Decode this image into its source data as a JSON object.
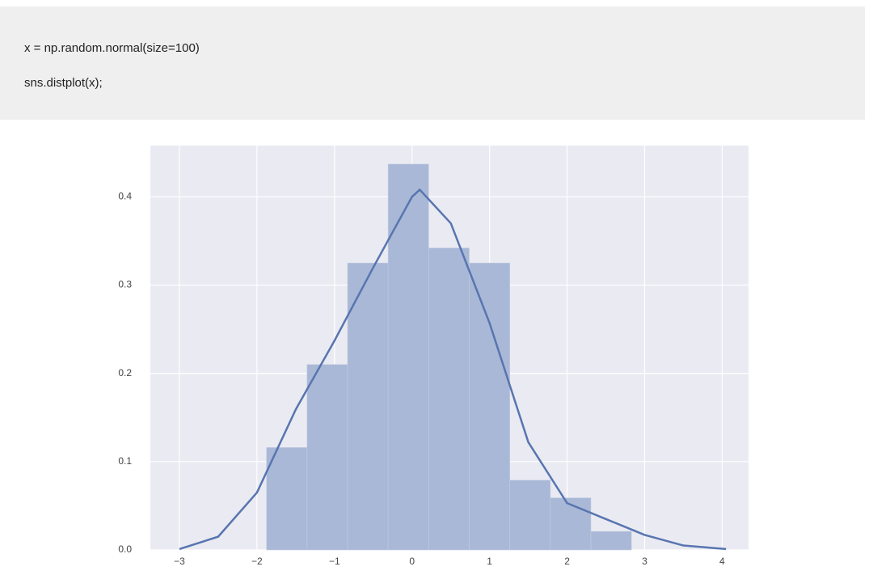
{
  "code": [
    "x = np.random.normal(size=100)",
    "sns.distplot(x);"
  ],
  "chart_data": {
    "type": "histogram",
    "bins": [
      -1.877,
      -1.354,
      -0.831,
      -0.308,
      0.215,
      0.738,
      1.261,
      1.784,
      2.307,
      2.83
    ],
    "values": [
      0.116,
      0.21,
      0.325,
      0.437,
      0.342,
      0.325,
      0.079,
      0.059,
      0.021
    ],
    "color": "#a9b8d6",
    "kde": {
      "x": [
        -3,
        -2.5,
        -2,
        -1.5,
        -1,
        -0.5,
        0,
        0.1,
        0.5,
        1,
        1.5,
        2,
        2.5,
        3,
        3.5,
        4.05
      ],
      "values": [
        0.001,
        0.015,
        0.065,
        0.159,
        0.237,
        0.32,
        0.4,
        0.408,
        0.37,
        0.257,
        0.122,
        0.053,
        0.035,
        0.017,
        0.005,
        0.001
      ],
      "color": "#5875b0"
    },
    "xlim": [
      -3.375,
      4.34
    ],
    "ylim": [
      0,
      0.458
    ],
    "xticks": [
      {
        "value": -3,
        "label": "−3"
      },
      {
        "value": -2,
        "label": "−2"
      },
      {
        "value": -1,
        "label": "−1"
      },
      0,
      1,
      2,
      3,
      4
    ],
    "yticks": [
      {
        "value": 0,
        "label": "0.0"
      },
      0.1,
      0.2,
      0.3,
      0.4
    ],
    "grid": true
  }
}
